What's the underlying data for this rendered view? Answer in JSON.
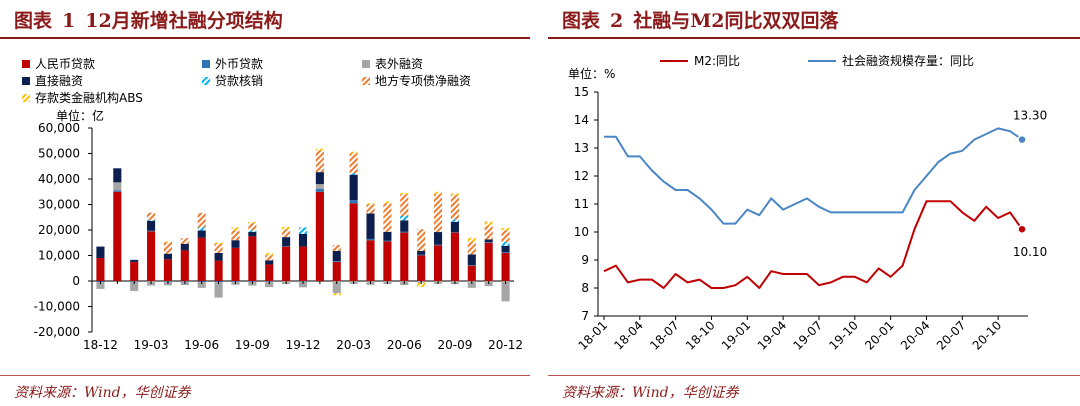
{
  "left": {
    "fig_label": "图表",
    "fig_num": "1",
    "title": "12月新增社融分项结构",
    "source": "资料来源：Wind，华创证券"
  },
  "right": {
    "fig_label": "图表",
    "fig_num": "2",
    "title": "社融与M2同比双双回落",
    "source": "资料来源：Wind，华创证券"
  },
  "colors": {
    "rmb": "#c00000",
    "fx": "#2e75b6",
    "trust": "#a6a6a6",
    "direct": "#0d1f4e",
    "writeoff": "#00b0f0",
    "lgb": "#ed7d31",
    "abs": "#ffc000",
    "m2": "#c00000",
    "tsf": "#4a86c5",
    "title": "#8b1a1a"
  },
  "chart_data": [
    {
      "type": "bar",
      "stacked": true,
      "title": "12月新增社融分项结构",
      "unit_label": "单位：亿",
      "ylim": [
        -20000,
        60000
      ],
      "y_ticks": [
        -20000,
        -10000,
        0,
        10000,
        20000,
        30000,
        40000,
        50000,
        60000
      ],
      "y_tick_labels": [
        "-20,000",
        "-10,000",
        "0",
        "10,000",
        "20,000",
        "30,000",
        "40,000",
        "50,000",
        "60,000"
      ],
      "categories": [
        "18-12",
        "19-01",
        "19-02",
        "19-03",
        "19-04",
        "19-05",
        "19-06",
        "19-07",
        "19-08",
        "19-09",
        "19-10",
        "19-11",
        "19-12",
        "20-01",
        "20-02",
        "20-03",
        "20-04",
        "20-05",
        "20-06",
        "20-07",
        "20-08",
        "20-09",
        "20-10",
        "20-11",
        "20-12"
      ],
      "x_tick_labels": [
        "18-12",
        "19-03",
        "19-06",
        "19-09",
        "19-12",
        "20-03",
        "20-06",
        "20-09",
        "20-12"
      ],
      "legend": [
        "人民币贷款",
        "外币贷款",
        "表外融资",
        "直接融资",
        "贷款核销",
        "地方专项债净融资",
        "存款类金融机构ABS"
      ],
      "series": [
        {
          "name": "人民币贷款",
          "key": "rmb",
          "pattern": "solid",
          "values": [
            9000,
            35000,
            7500,
            19500,
            8500,
            12000,
            17000,
            8000,
            13000,
            17500,
            6500,
            13500,
            13500,
            35000,
            7500,
            30500,
            16000,
            15500,
            19000,
            10000,
            14000,
            19000,
            6000,
            15000,
            11000
          ]
        },
        {
          "name": "外币贷款",
          "key": "fx",
          "pattern": "solid",
          "values": [
            -500,
            500,
            -300,
            300,
            -200,
            -300,
            -400,
            -500,
            -300,
            -200,
            -200,
            200,
            -300,
            1200,
            300,
            1200,
            500,
            300,
            300,
            300,
            200,
            200,
            200,
            300,
            300
          ]
        },
        {
          "name": "表外融资",
          "key": "trust",
          "pattern": "solid",
          "values": [
            -2600,
            3200,
            -3600,
            -1800,
            -1500,
            -1300,
            -2300,
            -6000,
            -1200,
            -1600,
            -2200,
            -1200,
            -2200,
            1800,
            -4800,
            -1100,
            -1500,
            -1200,
            -1600,
            -700,
            -1100,
            -1300,
            -2700,
            -2000,
            -8000
          ]
        },
        {
          "name": "直接融资",
          "key": "direct",
          "pattern": "solid",
          "values": [
            4500,
            5500,
            800,
            3800,
            2200,
            2600,
            2800,
            3000,
            3000,
            1800,
            1600,
            3500,
            5000,
            4700,
            4000,
            10000,
            10000,
            3500,
            4500,
            1500,
            5000,
            4000,
            4200,
            1000,
            2500
          ]
        },
        {
          "name": "贷款核销",
          "key": "writeoff",
          "pattern": "hatch",
          "values": [
            0,
            0,
            0,
            400,
            0,
            0,
            1200,
            0,
            0,
            600,
            0,
            0,
            2500,
            0,
            0,
            600,
            0,
            0,
            1700,
            0,
            0,
            1000,
            0,
            0,
            1500
          ]
        },
        {
          "name": "地方专项债净融资",
          "key": "lgb",
          "pattern": "hatch",
          "values": [
            0,
            0,
            0,
            2800,
            4500,
            2200,
            5700,
            3500,
            3800,
            2700,
            2000,
            3000,
            0,
            8500,
            2300,
            7800,
            3500,
            11200,
            8500,
            8500,
            15000,
            9500,
            5000,
            5500,
            4500
          ]
        },
        {
          "name": "存款类金融机构ABS",
          "key": "abs",
          "pattern": "hatch",
          "values": [
            0,
            0,
            0,
            0,
            300,
            0,
            0,
            600,
            1200,
            600,
            900,
            1000,
            0,
            700,
            -800,
            600,
            500,
            700,
            500,
            -1600,
            800,
            600,
            1500,
            1500,
            1000
          ]
        }
      ]
    },
    {
      "type": "line",
      "title": "社融与M2同比双双回落",
      "unit_label": "单位：%",
      "ylim": [
        7,
        15
      ],
      "y_ticks": [
        7,
        8,
        9,
        10,
        11,
        12,
        13,
        14,
        15
      ],
      "x": [
        "18-01",
        "18-02",
        "18-03",
        "18-04",
        "18-05",
        "18-06",
        "18-07",
        "18-08",
        "18-09",
        "18-10",
        "18-11",
        "18-12",
        "19-01",
        "19-02",
        "19-03",
        "19-04",
        "19-05",
        "19-06",
        "19-07",
        "19-08",
        "19-09",
        "19-10",
        "19-11",
        "19-12",
        "20-01",
        "20-02",
        "20-03",
        "20-04",
        "20-05",
        "20-06",
        "20-07",
        "20-08",
        "20-09",
        "20-10",
        "20-11",
        "20-12"
      ],
      "x_tick_labels": [
        "18-01",
        "18-04",
        "18-07",
        "18-10",
        "19-01",
        "19-04",
        "19-07",
        "19-10",
        "20-01",
        "20-04",
        "20-07",
        "20-10"
      ],
      "series": [
        {
          "name": "M2:同比",
          "key": "m2",
          "values": [
            8.6,
            8.8,
            8.2,
            8.3,
            8.3,
            8.0,
            8.5,
            8.2,
            8.3,
            8.0,
            8.0,
            8.1,
            8.4,
            8.0,
            8.6,
            8.5,
            8.5,
            8.5,
            8.1,
            8.2,
            8.4,
            8.4,
            8.2,
            8.7,
            8.4,
            8.8,
            10.1,
            11.1,
            11.1,
            11.1,
            10.7,
            10.4,
            10.9,
            10.5,
            10.7,
            10.1
          ]
        },
        {
          "name": "社会融资规模存量：同比",
          "key": "tsf",
          "values": [
            13.4,
            13.4,
            12.7,
            12.7,
            12.2,
            11.8,
            11.5,
            11.5,
            11.2,
            10.8,
            10.3,
            10.3,
            10.8,
            10.6,
            11.2,
            10.8,
            11.0,
            11.2,
            10.9,
            10.7,
            10.7,
            10.7,
            10.7,
            10.7,
            10.7,
            10.7,
            11.5,
            12.0,
            12.5,
            12.8,
            12.9,
            13.3,
            13.5,
            13.7,
            13.6,
            13.3
          ]
        }
      ],
      "end_labels": {
        "tsf": "13.30",
        "m2": "10.10"
      }
    }
  ]
}
